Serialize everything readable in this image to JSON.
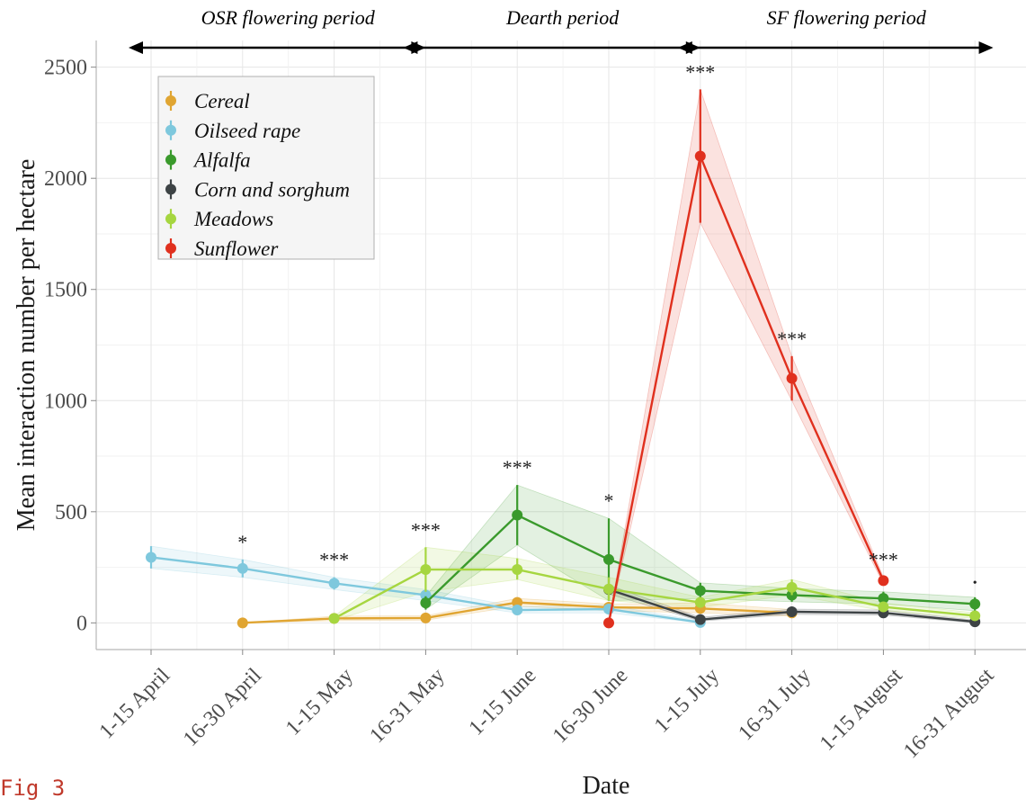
{
  "figure_label": "Fig 3",
  "chart_data": {
    "type": "line",
    "xlabel": "Date",
    "ylabel": "Mean interaction number per hectare",
    "ylim": [
      -120,
      2620
    ],
    "yticks": [
      0,
      500,
      1000,
      1500,
      2000,
      2500
    ],
    "categories": [
      "1-15 April",
      "16-30 April",
      "1-15 May",
      "16-31 May",
      "1-15 June",
      "16-30 June",
      "1-15 July",
      "16-31 July",
      "1-15 August",
      "16-31 August"
    ],
    "grid": true,
    "legend_position": "top-left",
    "periods": [
      {
        "label": "OSR flowering period",
        "start": 0,
        "end": 3
      },
      {
        "label": "Dearth period",
        "start": 3,
        "end": 6
      },
      {
        "label": "SF flowering period",
        "start": 6,
        "end": 9.2
      }
    ],
    "significance": [
      {
        "x": 1,
        "label": "*"
      },
      {
        "x": 2,
        "label": "***"
      },
      {
        "x": 3,
        "label": "***"
      },
      {
        "x": 4,
        "label": "***"
      },
      {
        "x": 5,
        "label": "*"
      },
      {
        "x": 6,
        "label": "***"
      },
      {
        "x": 7,
        "label": "***"
      },
      {
        "x": 8,
        "label": "***"
      },
      {
        "x": 9,
        "label": "•"
      }
    ],
    "series": [
      {
        "name": "Cereal",
        "color": "#E0A532",
        "points": [
          {
            "x": 1,
            "y": 0,
            "lo": 0,
            "hi": 0
          },
          {
            "x": 2,
            "y": 20,
            "lo": 10,
            "hi": 30
          },
          {
            "x": 3,
            "y": 22,
            "lo": 12,
            "hi": 32
          },
          {
            "x": 4,
            "y": 92,
            "lo": 75,
            "hi": 110
          },
          {
            "x": 5,
            "y": 70,
            "lo": 55,
            "hi": 85
          },
          {
            "x": 6,
            "y": 65,
            "lo": 45,
            "hi": 90
          },
          {
            "x": 7,
            "y": 45,
            "lo": 30,
            "hi": 60
          }
        ]
      },
      {
        "name": "Oilseed rape",
        "color": "#7EC8DD",
        "points": [
          {
            "x": 0,
            "y": 295,
            "lo": 245,
            "hi": 345
          },
          {
            "x": 1,
            "y": 245,
            "lo": 205,
            "hi": 285
          },
          {
            "x": 2,
            "y": 178,
            "lo": 150,
            "hi": 205
          },
          {
            "x": 3,
            "y": 125,
            "lo": 100,
            "hi": 150
          },
          {
            "x": 4,
            "y": 58,
            "lo": 45,
            "hi": 72
          },
          {
            "x": 5,
            "y": 62,
            "lo": 45,
            "hi": 80
          },
          {
            "x": 6,
            "y": 2,
            "lo": 0,
            "hi": 8
          }
        ]
      },
      {
        "name": "Alfalfa",
        "color": "#3A9A2C",
        "points": [
          {
            "x": 3,
            "y": 90,
            "lo": 60,
            "hi": 120
          },
          {
            "x": 4,
            "y": 485,
            "lo": 350,
            "hi": 620
          },
          {
            "x": 5,
            "y": 285,
            "lo": 100,
            "hi": 470
          },
          {
            "x": 6,
            "y": 145,
            "lo": 110,
            "hi": 180
          },
          {
            "x": 7,
            "y": 125,
            "lo": 95,
            "hi": 155
          },
          {
            "x": 8,
            "y": 110,
            "lo": 85,
            "hi": 140
          },
          {
            "x": 9,
            "y": 85,
            "lo": 55,
            "hi": 115
          }
        ]
      },
      {
        "name": "Corn and sorghum",
        "color": "#3D4345",
        "points": [
          {
            "x": 5,
            "y": 150,
            "lo": 130,
            "hi": 170
          },
          {
            "x": 6,
            "y": 15,
            "lo": 8,
            "hi": 25
          },
          {
            "x": 7,
            "y": 50,
            "lo": 38,
            "hi": 62
          },
          {
            "x": 8,
            "y": 45,
            "lo": 35,
            "hi": 58
          },
          {
            "x": 9,
            "y": 5,
            "lo": 0,
            "hi": 12
          }
        ]
      },
      {
        "name": "Meadows",
        "color": "#A6D640",
        "points": [
          {
            "x": 2,
            "y": 20,
            "lo": 10,
            "hi": 30
          },
          {
            "x": 3,
            "y": 240,
            "lo": 140,
            "hi": 340
          },
          {
            "x": 4,
            "y": 240,
            "lo": 195,
            "hi": 290
          },
          {
            "x": 5,
            "y": 152,
            "lo": 100,
            "hi": 205
          },
          {
            "x": 6,
            "y": 92,
            "lo": 70,
            "hi": 115
          },
          {
            "x": 7,
            "y": 160,
            "lo": 125,
            "hi": 195
          },
          {
            "x": 8,
            "y": 72,
            "lo": 55,
            "hi": 90
          },
          {
            "x": 9,
            "y": 32,
            "lo": 20,
            "hi": 45
          }
        ]
      },
      {
        "name": "Sunflower",
        "color": "#E0301E",
        "points": [
          {
            "x": 5,
            "y": 0,
            "lo": 0,
            "hi": 0
          },
          {
            "x": 6,
            "y": 2100,
            "lo": 1800,
            "hi": 2400
          },
          {
            "x": 7,
            "y": 1100,
            "lo": 1000,
            "hi": 1200
          },
          {
            "x": 8,
            "y": 190,
            "lo": 175,
            "hi": 205
          }
        ]
      }
    ]
  }
}
